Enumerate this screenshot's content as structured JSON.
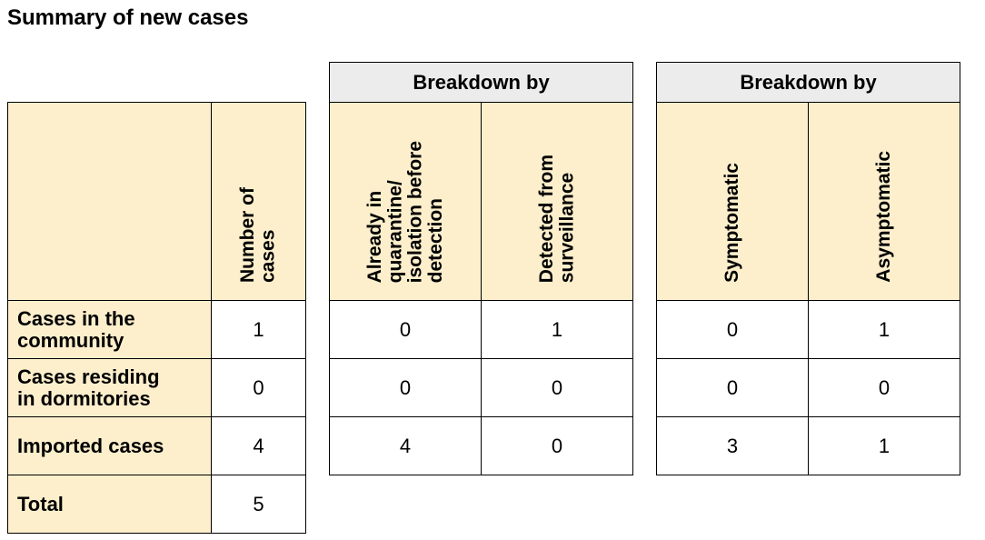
{
  "title": "Summary of new cases",
  "main_table": {
    "col_header": "Number of\ncases",
    "rows": [
      {
        "label": "Cases in the\ncommunity",
        "value": "1"
      },
      {
        "label": "Cases residing\nin dormitories",
        "value": "0"
      },
      {
        "label": "Imported cases",
        "value": "4"
      },
      {
        "label": "Total",
        "value": "5"
      }
    ]
  },
  "breakdown_detection": {
    "header": "Breakdown by",
    "columns": [
      "Already in\nquarantine/\nisolation before\ndetection",
      "Detected from\nsurveillance"
    ],
    "rows": [
      [
        "0",
        "1"
      ],
      [
        "0",
        "0"
      ],
      [
        "4",
        "0"
      ]
    ]
  },
  "breakdown_symptoms": {
    "header": "Breakdown by",
    "columns": [
      "Symptomatic",
      "Asymptomatic"
    ],
    "rows": [
      [
        "0",
        "1"
      ],
      [
        "0",
        "0"
      ],
      [
        "3",
        "1"
      ]
    ]
  }
}
